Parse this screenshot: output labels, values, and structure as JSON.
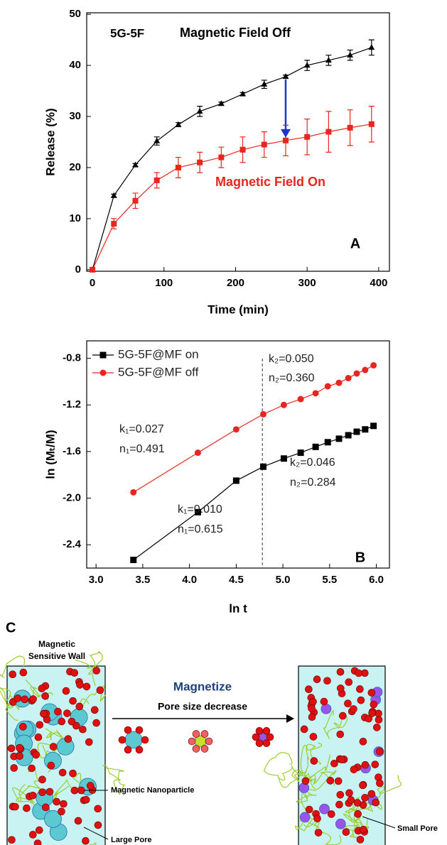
{
  "chart_data": [
    {
      "type": "line",
      "xlabel": "Time (min)",
      "ylabel": "Release (%)",
      "x": [
        0,
        30,
        60,
        90,
        120,
        150,
        180,
        210,
        240,
        270,
        300,
        330,
        360,
        390
      ],
      "series": [
        {
          "name": "Magnetic Field Off",
          "color": "#000000",
          "marker": "triangle",
          "values": [
            0,
            14.5,
            20.5,
            25.2,
            28.4,
            31,
            32.5,
            34.4,
            36.3,
            37.8,
            40,
            41,
            42,
            43.5
          ],
          "errors": [
            0.3,
            0.3,
            0.3,
            0.8,
            0.4,
            1,
            0.3,
            0.3,
            0.8,
            0.3,
            1,
            1,
            1,
            1.5
          ]
        },
        {
          "name": "Magnetic Field On",
          "color": "#e8261f",
          "marker": "square",
          "values": [
            0,
            9,
            13.5,
            17.5,
            20,
            21,
            22,
            23.5,
            24.5,
            25.3,
            26,
            27,
            27.8,
            28.5
          ],
          "errors": [
            0.3,
            1,
            1.5,
            1.5,
            2,
            2,
            2,
            2.5,
            2.5,
            3,
            3.5,
            4,
            3.5,
            3.5
          ]
        }
      ],
      "annotations": [
        "5G-5F",
        "A"
      ],
      "xlim": [
        -8,
        415
      ],
      "ylim": [
        -0.3,
        50.3
      ],
      "xticks": [
        0,
        100,
        200,
        300,
        400
      ],
      "yticks": [
        0,
        10,
        20,
        30,
        40,
        50
      ]
    },
    {
      "type": "line",
      "xlabel": "ln t",
      "ylabel": "ln (Mₜ/M)",
      "x": [
        3.4,
        4.09,
        4.5,
        4.79,
        5.01,
        5.19,
        5.35,
        5.48,
        5.6,
        5.7,
        5.79,
        5.88,
        5.97
      ],
      "series": [
        {
          "name": "5G-5F@MF on",
          "color": "#000000",
          "marker": "square",
          "values": [
            -2.53,
            -2.12,
            -1.85,
            -1.73,
            -1.66,
            -1.61,
            -1.56,
            -1.52,
            -1.49,
            -1.46,
            -1.43,
            -1.41,
            -1.38
          ]
        },
        {
          "name": "5G-5F@MF off",
          "color": "#e8261f",
          "marker": "circle",
          "values": [
            -1.95,
            -1.61,
            -1.41,
            -1.28,
            -1.2,
            -1.15,
            -1.1,
            -1.04,
            -1.01,
            -0.97,
            -0.93,
            -0.9,
            -0.86
          ]
        }
      ],
      "divider_x": 4.78,
      "annotations": [
        "k₂=0.050",
        "n₂=0.360",
        "k₁=0.027",
        "n₁=0.491",
        "k₂=0.046",
        "n₂=0.284",
        "k₁=0.010",
        "n₁=0.615",
        "B"
      ],
      "legend": "upper left",
      "xlim": [
        2.9,
        6.14
      ],
      "ylim": [
        -2.6,
        -0.65
      ],
      "xticks": [
        {
          "value": 3,
          "label": "3.0"
        },
        3.5,
        {
          "value": 4,
          "label": "4.0"
        },
        4.5,
        {
          "value": 5,
          "label": "5.0"
        },
        5.5,
        {
          "value": 6,
          "label": "6.0"
        }
      ],
      "yticks": [
        -0.8,
        -1.2,
        -1.6,
        {
          "value": -2,
          "label": "-2.0"
        },
        -2.4
      ]
    }
  ],
  "diagram": {
    "panel": "C",
    "wall_label": [
      "Magnetic",
      "Sensitive Wall"
    ],
    "action": "Magnetize",
    "arrow_label": "Pore size decrease",
    "nanoparticle_label": "Magnetic Nanoparticle",
    "large_pore_label": "Large Pore",
    "small_pore_label": "Small Pore"
  }
}
